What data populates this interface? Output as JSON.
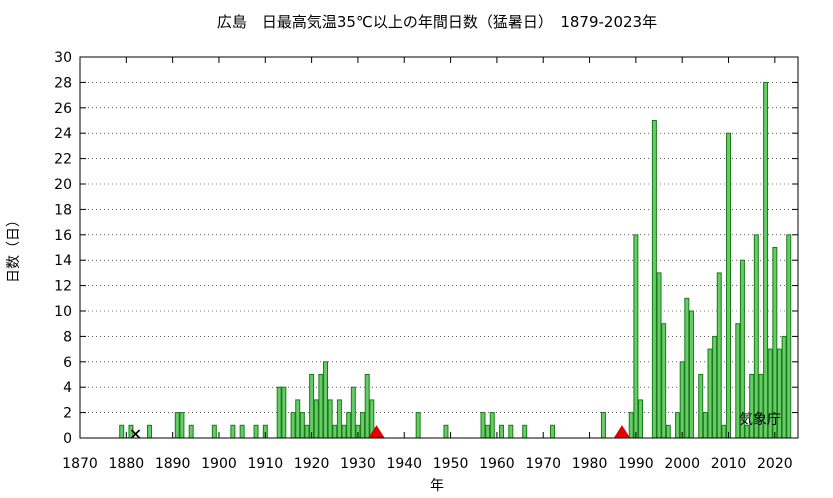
{
  "chart_data": {
    "type": "bar",
    "title": "広島　日最高気温35℃以上の年間日数（猛暑日）　1879-2023年",
    "xlabel": "年",
    "ylabel": "日数（日）",
    "credit": "気象庁",
    "xlim": [
      1870,
      2025
    ],
    "ylim": [
      0,
      30
    ],
    "xticks": [
      1870,
      1880,
      1890,
      1900,
      1910,
      1920,
      1930,
      1940,
      1950,
      1960,
      1970,
      1980,
      1990,
      2000,
      2010,
      2020
    ],
    "yticks": [
      0,
      2,
      4,
      6,
      8,
      10,
      12,
      14,
      16,
      18,
      20,
      22,
      24,
      26,
      28,
      30
    ],
    "bar_color": "#66cc66",
    "bar_edge_color": "#1a7a1a",
    "marker_color": "#e00000",
    "x": [
      1879,
      1880,
      1881,
      1882,
      1883,
      1884,
      1885,
      1886,
      1887,
      1888,
      1889,
      1890,
      1891,
      1892,
      1893,
      1894,
      1895,
      1896,
      1897,
      1898,
      1899,
      1900,
      1901,
      1902,
      1903,
      1904,
      1905,
      1906,
      1907,
      1908,
      1909,
      1910,
      1911,
      1912,
      1913,
      1914,
      1915,
      1916,
      1917,
      1918,
      1919,
      1920,
      1921,
      1922,
      1923,
      1924,
      1925,
      1926,
      1927,
      1928,
      1929,
      1930,
      1931,
      1932,
      1933,
      1934,
      1935,
      1936,
      1937,
      1938,
      1939,
      1940,
      1941,
      1942,
      1943,
      1944,
      1945,
      1946,
      1947,
      1948,
      1949,
      1950,
      1951,
      1952,
      1953,
      1954,
      1955,
      1956,
      1957,
      1958,
      1959,
      1960,
      1961,
      1962,
      1963,
      1964,
      1965,
      1966,
      1967,
      1968,
      1969,
      1970,
      1971,
      1972,
      1973,
      1974,
      1975,
      1976,
      1977,
      1978,
      1979,
      1980,
      1981,
      1982,
      1983,
      1984,
      1985,
      1986,
      1987,
      1988,
      1989,
      1990,
      1991,
      1992,
      1993,
      1994,
      1995,
      1996,
      1997,
      1998,
      1999,
      2000,
      2001,
      2002,
      2003,
      2004,
      2005,
      2006,
      2007,
      2008,
      2009,
      2010,
      2011,
      2012,
      2013,
      2014,
      2015,
      2016,
      2017,
      2018,
      2019,
      2020,
      2021,
      2022,
      2023
    ],
    "values": [
      1,
      0,
      1,
      0,
      0,
      0,
      1,
      0,
      0,
      0,
      0,
      0,
      2,
      2,
      0,
      1,
      0,
      0,
      0,
      0,
      1,
      0,
      0,
      0,
      1,
      0,
      1,
      0,
      0,
      1,
      0,
      1,
      0,
      0,
      4,
      4,
      0,
      2,
      3,
      2,
      1,
      5,
      3,
      5,
      6,
      3,
      1,
      3,
      1,
      2,
      4,
      1,
      2,
      5,
      3,
      0,
      0,
      0,
      0,
      0,
      0,
      0,
      0,
      0,
      2,
      0,
      0,
      0,
      0,
      0,
      1,
      0,
      0,
      0,
      0,
      0,
      0,
      0,
      2,
      1,
      2,
      0,
      1,
      0,
      1,
      0,
      0,
      1,
      0,
      0,
      0,
      0,
      0,
      1,
      0,
      0,
      0,
      0,
      0,
      0,
      0,
      0,
      0,
      0,
      2,
      0,
      0,
      0,
      0,
      0,
      2,
      16,
      3,
      0,
      0,
      25,
      13,
      9,
      1,
      0,
      2,
      6,
      11,
      10,
      0,
      5,
      2,
      7,
      8,
      13,
      1,
      24,
      0,
      9,
      14,
      1,
      5,
      16,
      5,
      28,
      7,
      15,
      7,
      8,
      16
    ],
    "missing_markers": [
      1882
    ],
    "relocation_markers": [
      1934,
      1987
    ]
  }
}
